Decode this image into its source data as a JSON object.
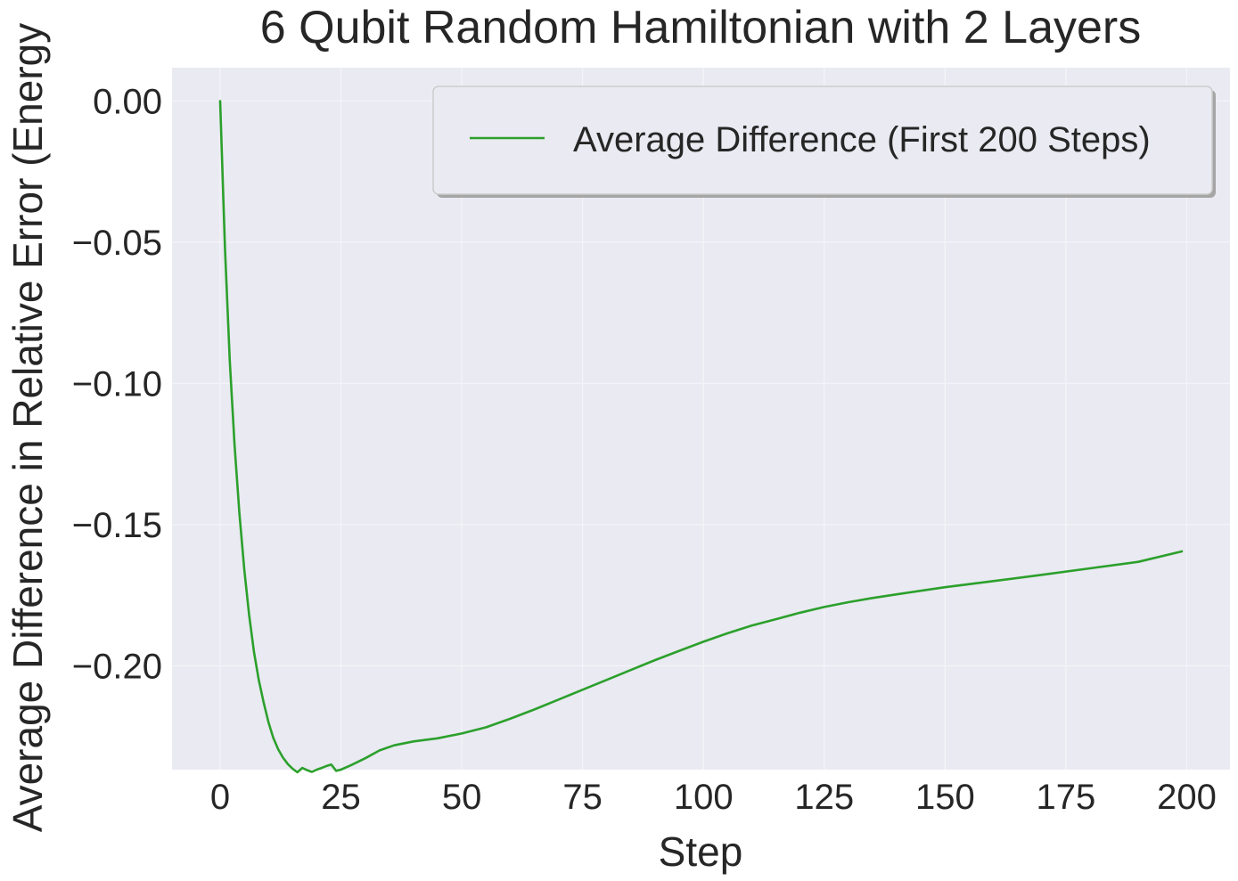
{
  "chart_data": {
    "type": "line",
    "title": "6 Qubit Random Hamiltonian with 2 Layers",
    "xlabel": "Step",
    "ylabel": "Average Difference in Relative Error (Energy",
    "xlim": [
      -9.95,
      208.95
    ],
    "ylim": [
      -0.2368,
      0.0118
    ],
    "xticks": [
      0,
      25,
      50,
      75,
      100,
      125,
      150,
      175,
      200
    ],
    "yticks": [
      0.0,
      -0.05,
      -0.1,
      -0.15,
      -0.2
    ],
    "xtick_labels": [
      "0",
      "25",
      "50",
      "75",
      "100",
      "125",
      "150",
      "175",
      "200"
    ],
    "ytick_labels": [
      "0.00",
      "−0.05",
      "−0.10",
      "−0.15",
      "−0.20"
    ],
    "grid": true,
    "legend_position": "top-right",
    "colors": {
      "background": "#eaeaf2",
      "grid": "#f4f4f8",
      "line": "#2ca02c",
      "text": "#262626"
    },
    "series": [
      {
        "name": "Average Difference (First 200 Steps)",
        "color": "#2ca02c",
        "x": [
          0,
          1,
          2,
          3,
          4,
          5,
          6,
          7,
          8,
          9,
          10,
          11,
          12,
          13,
          14,
          15,
          16,
          17,
          18,
          19,
          20,
          21,
          22,
          23,
          24,
          25,
          27,
          30,
          33,
          36,
          40,
          45,
          50,
          55,
          60,
          65,
          70,
          75,
          80,
          85,
          90,
          95,
          100,
          105,
          110,
          115,
          120,
          125,
          130,
          135,
          140,
          150,
          160,
          170,
          180,
          190,
          199
        ],
        "y": [
          0.0,
          -0.052,
          -0.092,
          -0.122,
          -0.146,
          -0.166,
          -0.182,
          -0.195,
          -0.205,
          -0.213,
          -0.22,
          -0.2255,
          -0.2295,
          -0.2325,
          -0.2348,
          -0.2365,
          -0.2377,
          -0.2362,
          -0.237,
          -0.2376,
          -0.2368,
          -0.2362,
          -0.2355,
          -0.235,
          -0.2372,
          -0.2368,
          -0.2353,
          -0.2328,
          -0.23,
          -0.2282,
          -0.2268,
          -0.2257,
          -0.224,
          -0.2218,
          -0.2188,
          -0.2155,
          -0.212,
          -0.2085,
          -0.205,
          -0.2015,
          -0.198,
          -0.1947,
          -0.1915,
          -0.1885,
          -0.1858,
          -0.1835,
          -0.1812,
          -0.1792,
          -0.1775,
          -0.176,
          -0.1747,
          -0.1722,
          -0.17,
          -0.1678,
          -0.1655,
          -0.1632,
          -0.1595
        ]
      }
    ]
  }
}
